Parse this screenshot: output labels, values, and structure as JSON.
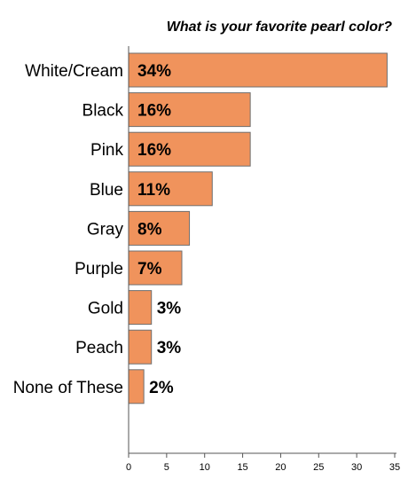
{
  "chart_data": {
    "type": "bar",
    "orientation": "horizontal",
    "title": "What is your favorite pearl color?",
    "categories": [
      "White/Cream",
      "Black",
      "Pink",
      "Blue",
      "Gray",
      "Purple",
      "Gold",
      "Peach",
      "None of These"
    ],
    "values": [
      34,
      16,
      16,
      11,
      8,
      7,
      3,
      3,
      2
    ],
    "value_labels": [
      "34%",
      "16%",
      "16%",
      "11%",
      "8%",
      "7%",
      "3%",
      "3%",
      "2%"
    ],
    "x_ticks": [
      0,
      5,
      10,
      15,
      20,
      25,
      30,
      35
    ],
    "xlim": [
      0,
      35
    ],
    "xlabel": "",
    "ylabel": "",
    "grid": false,
    "legend": "none",
    "colors": {
      "bar_fill": "#f0935c",
      "bar_stroke": "#6f6f6f",
      "axis": "#555555"
    }
  }
}
